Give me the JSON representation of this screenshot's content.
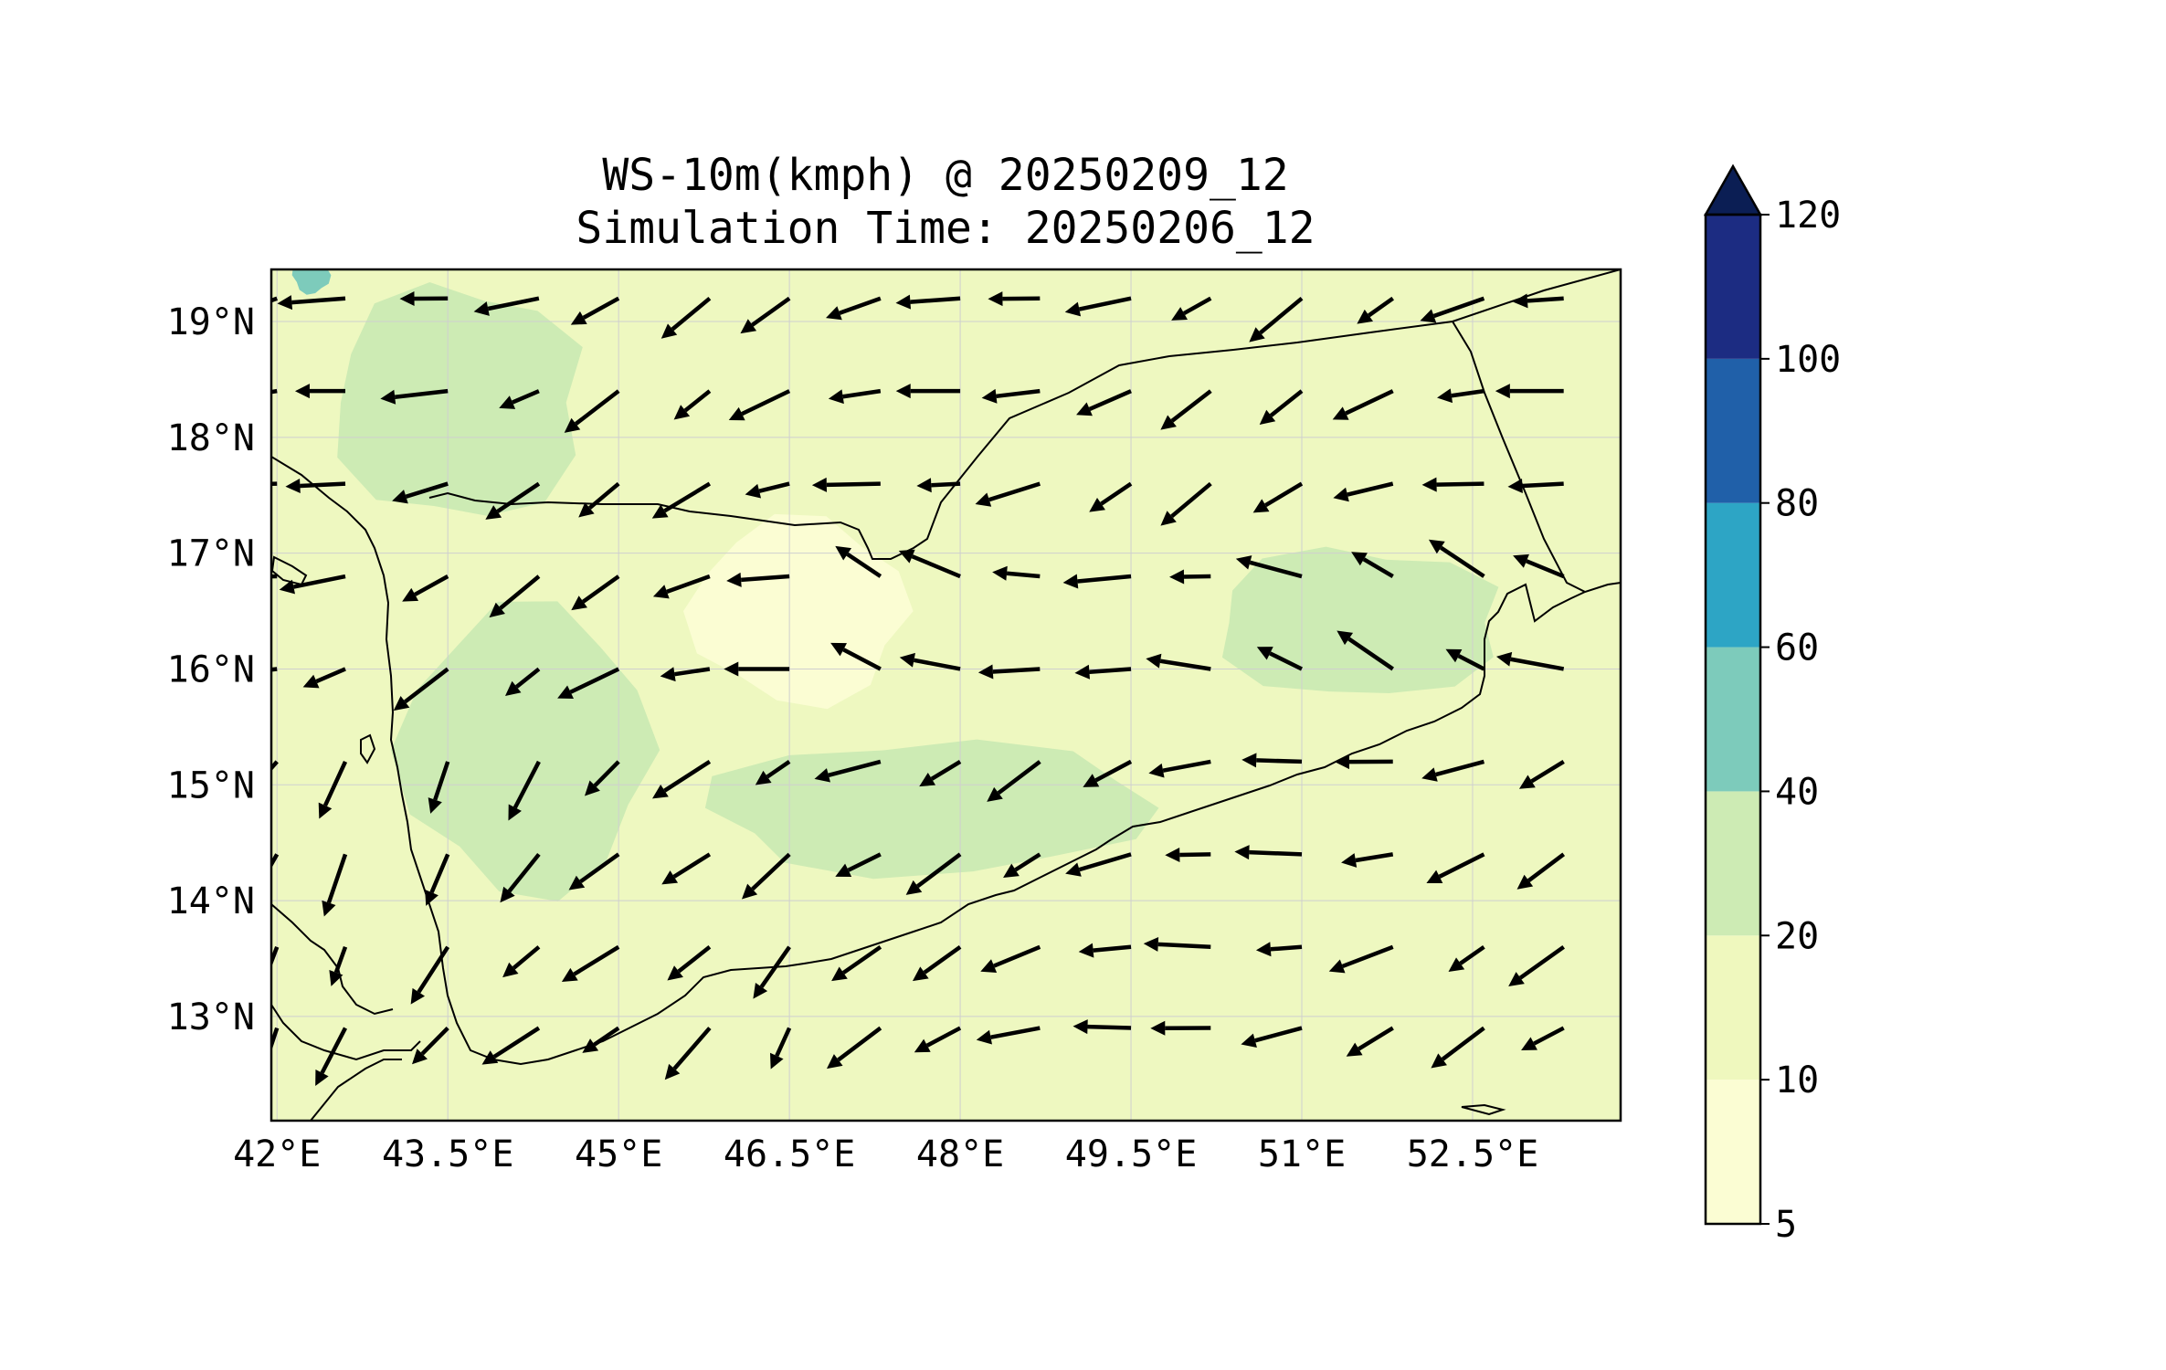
{
  "title": {
    "line1": "WS-10m(kmph) @ 20250209_12",
    "line2": "Simulation Time: 20250206_12"
  },
  "map": {
    "lon_range": [
      41.95,
      53.8
    ],
    "lat_range": [
      12.1,
      19.45
    ],
    "lon_ticks": [
      "42°E",
      "43.5°E",
      "45°E",
      "46.5°E",
      "48°E",
      "49.5°E",
      "51°E",
      "52.5°E"
    ],
    "lat_ticks": [
      "19°N",
      "18°N",
      "17°N",
      "16°N",
      "15°N",
      "14°N",
      "13°N"
    ],
    "background_color": "#eef8c0"
  },
  "colorbar": {
    "labels": [
      "5",
      "10",
      "20",
      "40",
      "60",
      "80",
      "100",
      "120"
    ],
    "colors": [
      "#fbfdd3",
      "#eff8be",
      "#cdebb4",
      "#7dcbbb",
      "#2da5c5",
      "#2060a9",
      "#1c2c82",
      "#0b1e54"
    ],
    "extend": "max"
  },
  "chart_data": {
    "type": "heatmap",
    "variable": "WS-10m(kmph)",
    "levels": [
      5,
      10,
      20,
      40,
      60,
      80,
      100,
      120
    ],
    "dominant_range_kmph": [
      10,
      20
    ],
    "patches": [
      {
        "range": [
          20,
          40
        ],
        "lon": 43.6,
        "lat": 18.3
      },
      {
        "range": [
          20,
          40
        ],
        "lon": 44.2,
        "lat": 15.3
      },
      {
        "range": [
          20,
          40
        ],
        "lon": 47.7,
        "lat": 14.8
      },
      {
        "range": [
          20,
          40
        ],
        "lon": 51.5,
        "lat": 16.4
      },
      {
        "range": [
          5,
          10
        ],
        "lon": 46.6,
        "lat": 16.5
      },
      {
        "range": [
          40,
          60
        ],
        "lon": 42.3,
        "lat": 19.4
      }
    ],
    "vectors_lon": [
      42.0,
      42.6,
      43.5,
      44.3,
      45.0,
      45.8,
      46.5,
      47.3,
      48.0,
      48.7,
      49.5,
      50.2,
      51.0,
      51.8,
      52.6,
      53.3
    ],
    "vectors_lat": [
      19.2,
      18.4,
      17.6,
      16.8,
      16.0,
      15.2,
      14.4,
      13.6,
      12.9
    ]
  }
}
